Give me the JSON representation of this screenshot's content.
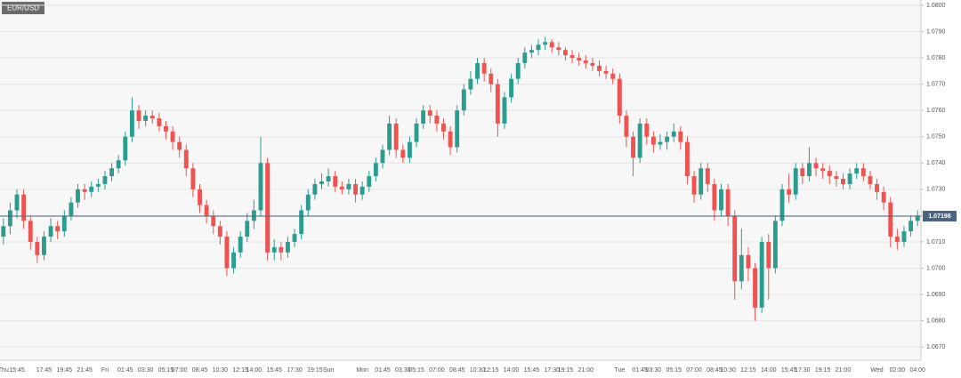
{
  "chart_data": {
    "type": "candlestick",
    "title": "EUR/USD",
    "x": [
      "Thu",
      null,
      "15:45",
      null,
      null,
      null,
      "17:45",
      null,
      null,
      "19:45",
      null,
      null,
      "21:45",
      null,
      null,
      "Fri",
      null,
      null,
      "01:45",
      null,
      null,
      "03:30",
      null,
      null,
      "05:15",
      null,
      "07:00",
      null,
      null,
      "08:45",
      null,
      null,
      "10:30",
      null,
      null,
      "12:15",
      null,
      "14:00",
      null,
      null,
      "15:45",
      null,
      null,
      "17:30",
      null,
      null,
      "19:15",
      null,
      "Sun",
      null,
      null,
      null,
      null,
      "Mon",
      null,
      null,
      "01:45",
      null,
      null,
      "03:30",
      null,
      "05:15",
      null,
      null,
      "07:00",
      null,
      null,
      "08:45",
      null,
      null,
      "10:30",
      null,
      "12:15",
      null,
      null,
      "14:00",
      null,
      null,
      "15:45",
      null,
      null,
      "17:30",
      null,
      "19:15",
      null,
      null,
      "21:00",
      null,
      null,
      null,
      null,
      "Tue",
      null,
      null,
      "01:45",
      null,
      "03:30",
      null,
      null,
      "05:15",
      null,
      null,
      "07:00",
      null,
      null,
      "08:45",
      null,
      "10:30",
      null,
      null,
      "12:15",
      null,
      null,
      "14:00",
      null,
      null,
      "15:45",
      null,
      "17:30",
      null,
      null,
      "19:15",
      null,
      null,
      "21:00",
      null,
      null,
      null,
      null,
      "Wed",
      null,
      null,
      "02:00",
      null,
      null,
      "04:00"
    ],
    "open": [
      1.0712,
      1.0716,
      1.0722,
      1.0728,
      1.0718,
      1.071,
      1.0705,
      1.0712,
      1.0716,
      1.0714,
      1.072,
      1.0725,
      1.073,
      1.0729,
      1.0731,
      1.0732,
      1.0735,
      1.0738,
      1.0741,
      1.075,
      1.076,
      1.0756,
      1.0758,
      1.0757,
      1.0754,
      1.0752,
      1.0748,
      1.0745,
      1.0738,
      1.073,
      1.0724,
      1.072,
      1.0716,
      1.0712,
      1.07,
      1.0706,
      1.0712,
      1.0718,
      1.0722,
      1.074,
      1.0706,
      1.0708,
      1.0706,
      1.071,
      1.0713,
      1.0722,
      1.0728,
      1.0732,
      1.0733,
      1.0735,
      1.0731,
      1.073,
      1.0732,
      1.0728,
      1.0731,
      1.0735,
      1.074,
      1.0745,
      1.0755,
      1.0745,
      1.0742,
      1.0748,
      1.0755,
      1.076,
      1.0758,
      1.0755,
      1.0752,
      1.0746,
      1.076,
      1.0768,
      1.0772,
      1.0778,
      1.0774,
      1.077,
      1.0755,
      1.0765,
      1.0772,
      1.0778,
      1.0782,
      1.0783,
      1.0785,
      1.0786,
      1.0784,
      1.0783,
      1.0781,
      1.078,
      1.0779,
      1.0778,
      1.0777,
      1.0775,
      1.0774,
      1.0772,
      1.0758,
      1.075,
      1.0742,
      1.0755,
      1.075,
      1.0747,
      1.0748,
      1.075,
      1.0752,
      1.0748,
      1.0735,
      1.0728,
      1.0738,
      1.0732,
      1.0722,
      1.073,
      1.072,
      1.0695,
      1.0705,
      1.07,
      1.0685,
      1.071,
      1.07,
      1.0718,
      1.073,
      1.0728,
      1.0738,
      1.0735,
      1.074,
      1.0738,
      1.0737,
      1.0735,
      1.0734,
      1.0732,
      1.0736,
      1.0738,
      1.0735,
      1.0732,
      1.0729,
      1.0725,
      1.0712,
      1.071,
      1.0714,
      1.0718
    ],
    "high": [
      1.0719,
      1.0725,
      1.073,
      1.073,
      1.072,
      1.0712,
      1.0714,
      1.0719,
      1.0718,
      1.0722,
      1.0727,
      1.0732,
      1.0732,
      1.0733,
      1.0734,
      1.0737,
      1.074,
      1.0743,
      1.0752,
      1.0765,
      1.0762,
      1.076,
      1.076,
      1.0759,
      1.0756,
      1.0754,
      1.075,
      1.0747,
      1.074,
      1.0732,
      1.0726,
      1.0722,
      1.0718,
      1.0714,
      1.0708,
      1.0714,
      1.0721,
      1.0726,
      1.075,
      1.0742,
      1.0711,
      1.071,
      1.0712,
      1.0715,
      1.0724,
      1.073,
      1.0734,
      1.0736,
      1.0738,
      1.0737,
      1.0733,
      1.0734,
      1.0734,
      1.0733,
      1.0737,
      1.0742,
      1.0747,
      1.0758,
      1.0757,
      1.0747,
      1.075,
      1.0757,
      1.0762,
      1.0762,
      1.076,
      1.0757,
      1.0754,
      1.0762,
      1.077,
      1.0775,
      1.078,
      1.078,
      1.0776,
      1.0772,
      1.0767,
      1.0774,
      1.078,
      1.0784,
      1.0785,
      1.0787,
      1.0788,
      1.0787,
      1.0786,
      1.0784,
      1.0783,
      1.0782,
      1.0781,
      1.078,
      1.0779,
      1.0777,
      1.0776,
      1.0774,
      1.076,
      1.0752,
      1.0757,
      1.0757,
      1.0752,
      1.0751,
      1.0752,
      1.0755,
      1.0754,
      1.075,
      1.0737,
      1.074,
      1.074,
      1.0734,
      1.0732,
      1.0732,
      1.0722,
      1.0715,
      1.0708,
      1.0702,
      1.0712,
      1.0713,
      1.072,
      1.0732,
      1.0736,
      1.074,
      1.074,
      1.0746,
      1.0742,
      1.074,
      1.0739,
      1.0737,
      1.0736,
      1.0738,
      1.074,
      1.074,
      1.0737,
      1.0734,
      1.0731,
      1.0727,
      1.0715,
      1.0716,
      1.072,
      1.0722
    ],
    "low": [
      1.0709,
      1.0713,
      1.0719,
      1.0715,
      1.0707,
      1.0702,
      1.0703,
      1.071,
      1.0711,
      1.0712,
      1.0718,
      1.0723,
      1.0726,
      1.0727,
      1.0729,
      1.073,
      1.0733,
      1.0736,
      1.0739,
      1.0748,
      1.0753,
      1.0754,
      1.0755,
      1.0752,
      1.0749,
      1.0745,
      1.0742,
      1.0735,
      1.0727,
      1.0721,
      1.0717,
      1.0713,
      1.0709,
      1.0697,
      1.0698,
      1.0704,
      1.071,
      1.0715,
      1.072,
      1.0703,
      1.0703,
      1.0703,
      1.0704,
      1.0708,
      1.0711,
      1.072,
      1.0726,
      1.073,
      1.0731,
      1.0729,
      1.0728,
      1.0728,
      1.0725,
      1.0726,
      1.0729,
      1.0733,
      1.0738,
      1.0743,
      1.0742,
      1.074,
      1.074,
      1.0746,
      1.0753,
      1.0755,
      1.0752,
      1.0749,
      1.0743,
      1.0744,
      1.0758,
      1.0766,
      1.077,
      1.0771,
      1.0767,
      1.075,
      1.0753,
      1.0763,
      1.077,
      1.0776,
      1.078,
      1.0781,
      1.0783,
      1.0782,
      1.0781,
      1.0779,
      1.0778,
      1.0777,
      1.0776,
      1.0775,
      1.0773,
      1.0772,
      1.077,
      1.0755,
      1.0746,
      1.0735,
      1.074,
      1.0747,
      1.0744,
      1.0745,
      1.0745,
      1.0748,
      1.0745,
      1.0732,
      1.0725,
      1.0726,
      1.0729,
      1.0718,
      1.072,
      1.0716,
      1.0688,
      1.0692,
      1.0695,
      1.068,
      1.0683,
      1.0688,
      1.0698,
      1.0716,
      1.0725,
      1.0726,
      1.0732,
      1.0733,
      1.0735,
      1.0734,
      1.0732,
      1.0731,
      1.073,
      1.073,
      1.0734,
      1.0733,
      1.073,
      1.0726,
      1.0722,
      1.0708,
      1.0707,
      1.0708,
      1.0712,
      1.0716
    ],
    "close": [
      1.0716,
      1.0722,
      1.0728,
      1.0718,
      1.071,
      1.0705,
      1.0712,
      1.0716,
      1.0714,
      1.072,
      1.0725,
      1.073,
      1.0729,
      1.0731,
      1.0732,
      1.0735,
      1.0738,
      1.0741,
      1.075,
      1.076,
      1.0756,
      1.0758,
      1.0757,
      1.0754,
      1.0752,
      1.0748,
      1.0745,
      1.0738,
      1.073,
      1.0724,
      1.072,
      1.0716,
      1.0712,
      1.07,
      1.0706,
      1.0712,
      1.0718,
      1.0722,
      1.074,
      1.0706,
      1.0708,
      1.0706,
      1.071,
      1.0713,
      1.0722,
      1.0728,
      1.0732,
      1.0733,
      1.0735,
      1.0731,
      1.073,
      1.0732,
      1.0728,
      1.0731,
      1.0735,
      1.074,
      1.0745,
      1.0755,
      1.0745,
      1.0742,
      1.0748,
      1.0755,
      1.076,
      1.0758,
      1.0755,
      1.0752,
      1.0746,
      1.076,
      1.0768,
      1.0772,
      1.0778,
      1.0774,
      1.077,
      1.0755,
      1.0765,
      1.0772,
      1.0778,
      1.0782,
      1.0783,
      1.0785,
      1.0786,
      1.0784,
      1.0783,
      1.0781,
      1.078,
      1.0779,
      1.0778,
      1.0777,
      1.0775,
      1.0774,
      1.0772,
      1.0758,
      1.075,
      1.0742,
      1.0755,
      1.075,
      1.0747,
      1.0748,
      1.075,
      1.0752,
      1.0748,
      1.0735,
      1.0728,
      1.0738,
      1.0732,
      1.0722,
      1.073,
      1.072,
      1.0695,
      1.0705,
      1.07,
      1.0685,
      1.071,
      1.07,
      1.0718,
      1.073,
      1.0728,
      1.0738,
      1.0735,
      1.074,
      1.0738,
      1.0737,
      1.0735,
      1.0734,
      1.0732,
      1.0736,
      1.0738,
      1.0735,
      1.0732,
      1.0729,
      1.0725,
      1.0712,
      1.071,
      1.0714,
      1.0718,
      1.072
    ],
    "up_color": "#2a9d8f",
    "down_color": "#ef5350",
    "last_price": 1.07198,
    "last_price_color": "#4a6584",
    "ylim": [
      1.0665,
      1.0802
    ],
    "yticks": [
      {
        "value": 1.067,
        "label": "1.0670"
      },
      {
        "value": 1.068,
        "label": "1.0680"
      },
      {
        "value": 1.069,
        "label": "1.0690"
      },
      {
        "value": 1.07,
        "label": "1.0700"
      },
      {
        "value": 1.071,
        "label": "1.0710"
      },
      {
        "value": 1.072,
        "label": "1.0720"
      },
      {
        "value": 1.073,
        "label": "1.0730"
      },
      {
        "value": 1.074,
        "label": "1.0740"
      },
      {
        "value": 1.075,
        "label": "1.0750"
      },
      {
        "value": 1.076,
        "label": "1.0760"
      },
      {
        "value": 1.077,
        "label": "1.0770"
      },
      {
        "value": 1.078,
        "label": "1.0780"
      },
      {
        "value": 1.079,
        "label": "1.0790"
      },
      {
        "value": 1.08,
        "label": "1.0800"
      }
    ],
    "grid": true
  }
}
